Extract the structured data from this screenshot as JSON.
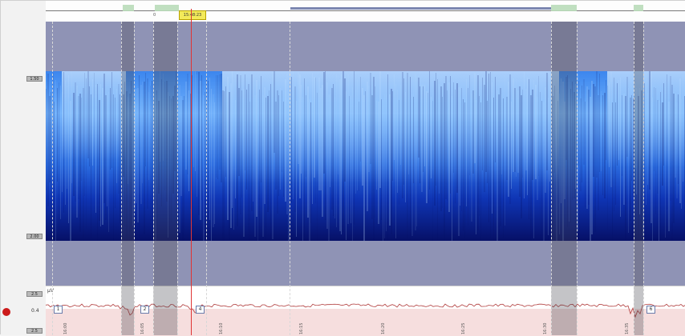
{
  "app": {
    "cursor_time": "15:48:23",
    "timeline_digit": "0"
  },
  "gutter": {
    "top_label": "1.50",
    "mid_label": "2.00",
    "trace_top_label": "2.5",
    "trace_value": "0.4",
    "trace_bottom_label": "2.5",
    "unit": "μV"
  },
  "segment_boxes": [
    "1",
    "2",
    "4",
    "6"
  ],
  "time_labels": [
    "16:00",
    "16:05",
    "16:10",
    "16:15",
    "16:20",
    "16:25",
    "16:30",
    "16:35"
  ],
  "colors": {
    "band": "#8f93b5",
    "spectro_light": "#bfe0ff",
    "spectro_dark": "#061067",
    "accent_red": "#e03535",
    "trace_pink": "#f6dede",
    "timeline_segment": "#b9dbb9"
  }
}
